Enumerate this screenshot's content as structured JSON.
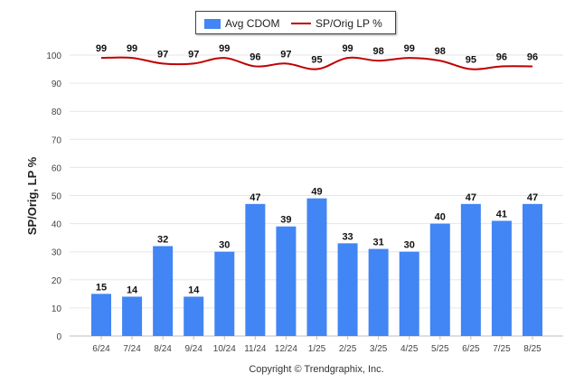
{
  "legend": {
    "bar_label": "Avg CDOM",
    "line_label": "SP/Orig LP %"
  },
  "copyright": "Copyright © Trendgraphix, Inc.",
  "colors": {
    "bar": "#4285f4",
    "line": "#c00000",
    "grid": "#e6e6e6"
  },
  "chart_data": {
    "type": "bar",
    "title": "",
    "xlabel": "",
    "ylabel": "SP/Orig, LP %",
    "ylim": [
      0,
      100
    ],
    "yticks": [
      0,
      10,
      20,
      30,
      40,
      50,
      60,
      70,
      80,
      90,
      100
    ],
    "grid": true,
    "legend_position": "top-center",
    "categories": [
      "6/24",
      "7/24",
      "8/24",
      "9/24",
      "10/24",
      "11/24",
      "12/24",
      "1/25",
      "2/25",
      "3/25",
      "4/25",
      "5/25",
      "6/25",
      "7/25",
      "8/25"
    ],
    "series": [
      {
        "name": "Avg CDOM",
        "type": "bar",
        "values": [
          15,
          14,
          32,
          14,
          30,
          47,
          39,
          49,
          33,
          31,
          30,
          40,
          47,
          41,
          47
        ]
      },
      {
        "name": "SP/Orig LP %",
        "type": "line",
        "values": [
          99,
          99,
          97,
          97,
          99,
          96,
          97,
          95,
          99,
          98,
          99,
          98,
          95,
          96,
          96
        ]
      }
    ]
  }
}
